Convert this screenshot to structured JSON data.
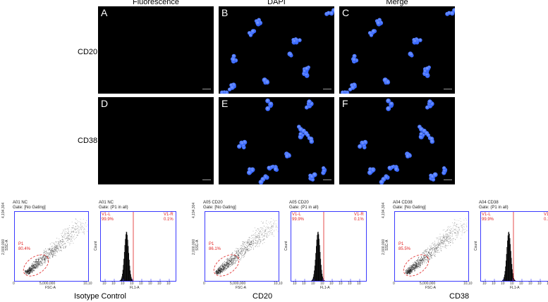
{
  "figure": {
    "columns": [
      "Fluorescence",
      "DAPI",
      "Merge"
    ],
    "rows": [
      "CD20",
      "CD38"
    ],
    "panel_letters": [
      "A",
      "B",
      "C",
      "D",
      "E",
      "F"
    ]
  },
  "flow": {
    "groups": [
      {
        "caption": "Isotype Control",
        "scatter": {
          "title": "A01 NC",
          "gate": "Gate: [No Gating]",
          "p_label": "P1",
          "p_value": "80.4%",
          "x_axis": "FSC-A",
          "y_axis": "SSC-A",
          "y_ticks": [
            "4,194,304",
            "2,000,000",
            "0"
          ],
          "x_ticks": [
            "0",
            "5,000,000",
            "10,10"
          ]
        },
        "hist": {
          "title": "A01 NC",
          "gate": "Gate: (P1 in all)",
          "vl_label": "V1-L",
          "vl_value": "99.9%",
          "vr_label": "V1-R",
          "vr_value": "0.1%",
          "x_axis": "FL1-A",
          "y_axis": "Count",
          "x_ticks": [
            "10",
            "10",
            "10",
            "10",
            "10",
            "10",
            "10",
            "10"
          ]
        }
      },
      {
        "caption": "CD20",
        "scatter": {
          "title": "A05 CD20",
          "gate": "Gate: [No Gating]",
          "p_label": "P1",
          "p_value": "86.1%",
          "x_axis": "FSC-A",
          "y_axis": "SSC-A",
          "y_ticks": [
            "4,194,304",
            "2,000,000",
            "0"
          ],
          "x_ticks": [
            "0",
            "5,000,000",
            "10,10"
          ]
        },
        "hist": {
          "title": "A05 CD20",
          "gate": "Gate: (P1 in all)",
          "vl_label": "V1-L",
          "vl_value": "99.9%",
          "vr_label": "V1-R",
          "vr_value": "0.1%",
          "x_axis": "FL1-A",
          "y_axis": "Count",
          "x_ticks": [
            "10",
            "10",
            "10",
            "10",
            "10",
            "10",
            "10",
            "10"
          ]
        }
      },
      {
        "caption": "CD38",
        "scatter": {
          "title": "A04 CD38",
          "gate": "Gate: [No Gating]",
          "p_label": "P1",
          "p_value": "85.5%",
          "x_axis": "FSC-A",
          "y_axis": "SSC-A",
          "y_ticks": [
            "4,194,304",
            "2,000,000",
            "0"
          ],
          "x_ticks": [
            "0",
            "5,000,000",
            "10,10"
          ]
        },
        "hist": {
          "title": "A04 CD38",
          "gate": "Gate: (P1 in all)",
          "vl_label": "V1-L",
          "vl_value": "99.9%",
          "vr_label": "V1-R",
          "vr_value": "0.1%",
          "x_axis": "FL1-A",
          "y_axis": "Count",
          "x_ticks": [
            "10",
            "10",
            "10",
            "10",
            "10",
            "10",
            "10",
            "10"
          ]
        }
      }
    ]
  },
  "colors": {
    "nucleus": "#2a5cff",
    "nucleus_core": "#7fa0ff",
    "gate": "#e02020",
    "frame": "#3a3aff"
  }
}
